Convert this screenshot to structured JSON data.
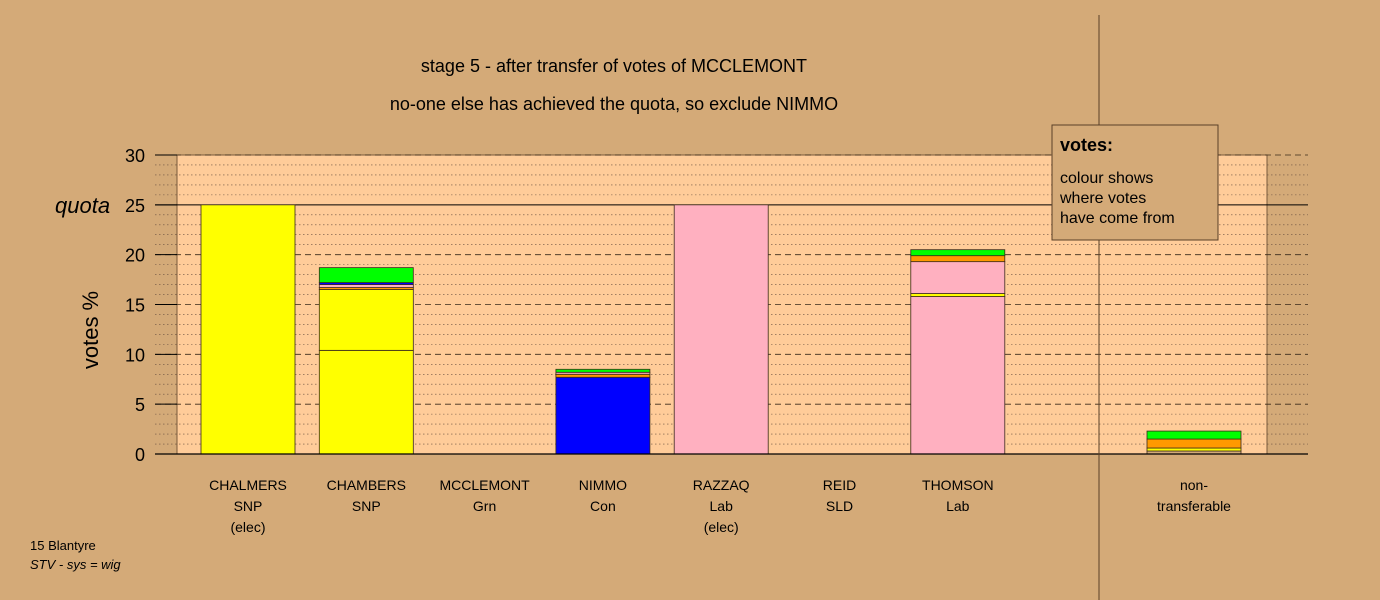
{
  "chart_data": {
    "type": "bar",
    "title": "stage 5 - after transfer of votes of MCCLEMONT",
    "subtitle": "no-one else has achieved the quota, so exclude NIMMO",
    "ylabel": "votes %",
    "ylim": [
      0,
      30
    ],
    "yticks": [
      "0",
      "5",
      "10",
      "15",
      "20",
      "25",
      "30"
    ],
    "quota": {
      "label": "quota",
      "value": 25
    },
    "colors": {
      "snp": "#ffff00",
      "lab": "#ffb0c0",
      "con": "#0000ff",
      "grn": "#00ff00",
      "sld": "#ff9900",
      "other": "#d4aa78",
      "plot_bg": "#ffcc99"
    },
    "candidates": [
      {
        "name": "CHALMERS",
        "party": "SNP",
        "note": "(elec)",
        "segments": [
          {
            "value": 25.0,
            "color": "#ffff00"
          }
        ]
      },
      {
        "name": "CHAMBERS",
        "party": "SNP",
        "note": "",
        "segments": [
          {
            "value": 10.4,
            "color": "#ffff00"
          },
          {
            "value": 6.1,
            "color": "#ffff00"
          },
          {
            "value": 0.2,
            "color": "#ff9900"
          },
          {
            "value": 0.3,
            "color": "#ffb0c0"
          },
          {
            "value": 0.2,
            "color": "#0000ff"
          },
          {
            "value": 1.5,
            "color": "#00ff00"
          }
        ]
      },
      {
        "name": "MCCLEMONT",
        "party": "Grn",
        "note": "",
        "segments": []
      },
      {
        "name": "NIMMO",
        "party": "Con",
        "note": "",
        "segments": [
          {
            "value": 7.7,
            "color": "#0000ff"
          },
          {
            "value": 0.3,
            "color": "#ff9900"
          },
          {
            "value": 0.2,
            "color": "#ffb0c0"
          },
          {
            "value": 0.3,
            "color": "#00ff00"
          }
        ]
      },
      {
        "name": "RAZZAQ",
        "party": "Lab",
        "note": "(elec)",
        "segments": [
          {
            "value": 25.0,
            "color": "#ffb0c0"
          }
        ]
      },
      {
        "name": "REID",
        "party": "SLD",
        "note": "",
        "segments": []
      },
      {
        "name": "THOMSON",
        "party": "Lab",
        "note": "",
        "segments": [
          {
            "value": 15.8,
            "color": "#ffb0c0"
          },
          {
            "value": 0.3,
            "color": "#ffff00"
          },
          {
            "value": 3.2,
            "color": "#ffb0c0"
          },
          {
            "value": 0.6,
            "color": "#ff9900"
          },
          {
            "value": 0.6,
            "color": "#00ff00"
          }
        ]
      }
    ],
    "nontransferable": {
      "label_line1": "non-",
      "label_line2": "transferable",
      "segments": [
        {
          "value": 0.3,
          "color": "#d4aa78"
        },
        {
          "value": 0.3,
          "color": "#ffff00"
        },
        {
          "value": 0.9,
          "color": "#ff9900"
        },
        {
          "value": 0.8,
          "color": "#00ff00"
        }
      ]
    }
  },
  "legend": {
    "heading": "votes:",
    "line1": "colour shows",
    "line2": "where votes",
    "line3": "have come from"
  },
  "footer": {
    "line1": "15 Blantyre",
    "line2": "STV - sys = wig"
  }
}
